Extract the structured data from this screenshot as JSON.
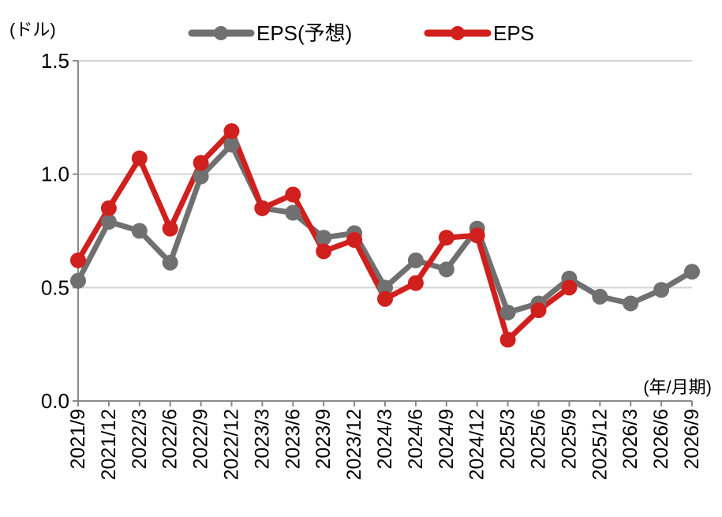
{
  "chart_data": {
    "type": "line",
    "yunit": "(ドル)",
    "xunit": "(年/月期)",
    "ylim": [
      0,
      1.5
    ],
    "yticks": [
      "0.0",
      "0.5",
      "1.0",
      "1.5"
    ],
    "categories": [
      "2021/9",
      "2021/12",
      "2022/3",
      "2022/6",
      "2022/9",
      "2022/12",
      "2023/3",
      "2023/6",
      "2023/9",
      "2023/12",
      "2024/3",
      "2024/6",
      "2024/9",
      "2024/12",
      "2025/3",
      "2025/6",
      "2025/9",
      "2025/12",
      "2026/3",
      "2026/6",
      "2026/9"
    ],
    "series": [
      {
        "name": "EPS(予想)",
        "color": "#707070",
        "values": [
          0.53,
          0.79,
          0.75,
          0.61,
          0.99,
          1.13,
          0.85,
          0.83,
          0.72,
          0.74,
          0.5,
          0.62,
          0.58,
          0.76,
          0.39,
          0.43,
          0.54,
          0.46,
          0.43,
          0.49,
          0.57
        ]
      },
      {
        "name": "EPS",
        "color": "#d0201e",
        "values": [
          0.62,
          0.85,
          1.07,
          0.76,
          1.05,
          1.19,
          0.85,
          0.91,
          0.66,
          0.71,
          0.45,
          0.52,
          0.72,
          0.73,
          0.27,
          0.4,
          0.5,
          null,
          null,
          null,
          null
        ]
      }
    ],
    "grid": true,
    "legend": "top-center"
  }
}
